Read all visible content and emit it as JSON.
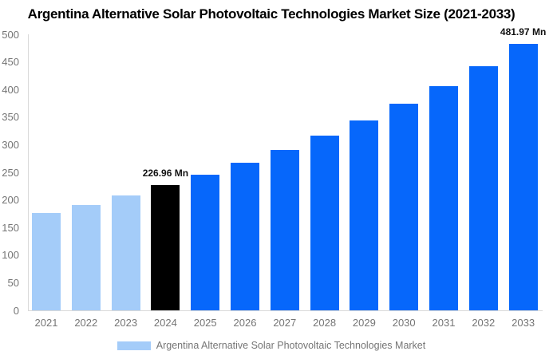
{
  "title": "Argentina Alternative Solar Photovoltaic Technologies Market Size (2021-2033)",
  "chart_data": {
    "type": "bar",
    "title": "Argentina Alternative Solar Photovoltaic Technologies Market Size (2021-2033)",
    "categories": [
      "2021",
      "2022",
      "2023",
      "2024",
      "2025",
      "2026",
      "2027",
      "2028",
      "2029",
      "2030",
      "2031",
      "2032",
      "2033"
    ],
    "series": [
      {
        "name": "Argentina Alternative Solar Photovoltaic Technologies Market",
        "values": [
          176,
          191,
          208,
          226.96,
          246,
          268,
          291,
          316,
          344,
          374,
          406,
          442,
          481.97
        ]
      }
    ],
    "units": "Mn",
    "ylim": [
      0,
      500
    ],
    "ytick_step": 50,
    "yticks": [
      0,
      50,
      100,
      150,
      200,
      250,
      300,
      350,
      400,
      450,
      500
    ],
    "grid": false,
    "legend_position": "bottom",
    "annotations": [
      {
        "category": "2024",
        "text": "226.96 Mn"
      },
      {
        "category": "2033",
        "text": "481.97 Mn"
      }
    ],
    "bar_colors": [
      "#a4ccf9",
      "#a4ccf9",
      "#a4ccf9",
      "#000000",
      "#0667fb",
      "#0667fb",
      "#0667fb",
      "#0667fb",
      "#0667fb",
      "#0667fb",
      "#0667fb",
      "#0667fb",
      "#0667fb"
    ]
  },
  "legend": {
    "swatch_color": "#a4ccf9",
    "label": "Argentina Alternative Solar Photovoltaic Technologies Market"
  },
  "colors": {
    "axis_line": "#d9d9d9",
    "tick_text": "#757575",
    "annotation_text": "#111111",
    "title_text": "#000000",
    "background": "#ffffff"
  }
}
